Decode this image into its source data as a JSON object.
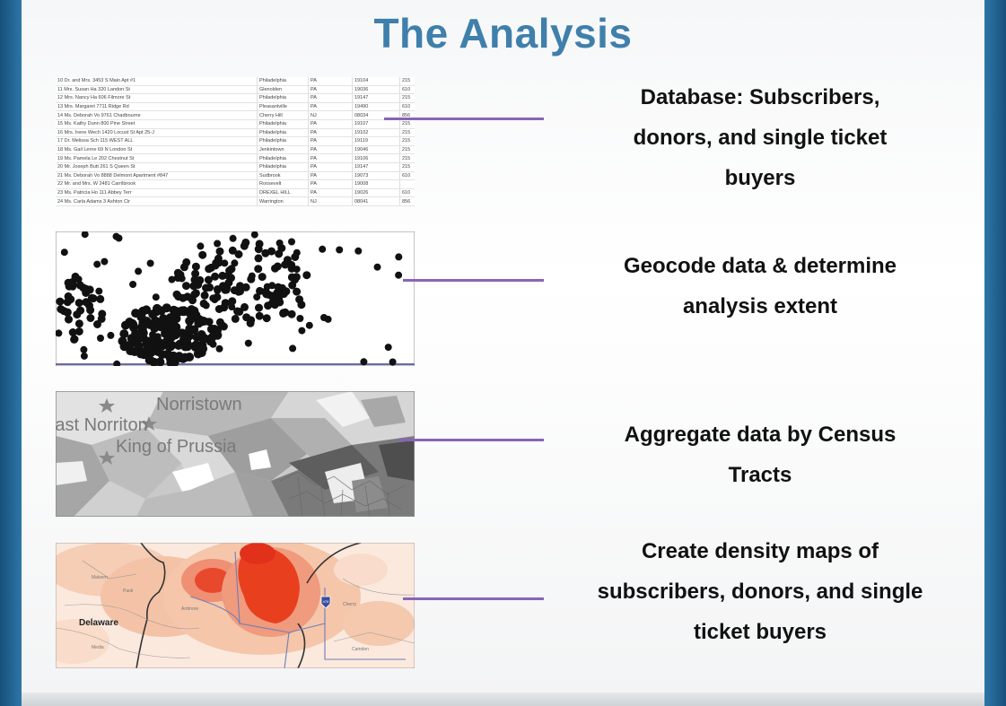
{
  "title": "The Analysis",
  "colors": {
    "title": "#3f7fab",
    "connector": "#8a63b8",
    "frame": "#1f5f8f"
  },
  "steps": [
    {
      "label_lines": [
        "Database: Subscribers,",
        "donors, and single ticket",
        "buyers"
      ],
      "thumbnail": "spreadsheet-image"
    },
    {
      "label_lines": [
        "Geocode data & determine",
        "analysis extent"
      ],
      "thumbnail": "point-map-image"
    },
    {
      "label_lines": [
        "Aggregate data by Census",
        "Tracts"
      ],
      "thumbnail": "census-tract-map-image"
    },
    {
      "label_lines": [
        "Create density maps of",
        "subscribers, donors, and single",
        "ticket buyers"
      ],
      "thumbnail": "density-map-image"
    }
  ],
  "spreadsheet_rows": [
    [
      "10 Dr. and Mrs. 3453 S Main Apt #1",
      "Philadelphia",
      "PA",
      "19104",
      "215"
    ],
    [
      "11 Mrs. Susan Ha 320 Landon St",
      "Glenolden",
      "PA",
      "19036",
      "610"
    ],
    [
      "12 Mrs. Nancy Ha 606 Filmore St",
      "Philadelphia",
      "PA",
      "19147",
      "215"
    ],
    [
      "13 Mrs. Margaret 7711 Ridge Rd",
      "Pleasantville",
      "PA",
      "19490",
      "610"
    ],
    [
      "14 Ms. Deborah Vo 9761 Chadbourne",
      "Cherry Hill",
      "NJ",
      "08034",
      "856"
    ],
    [
      "15 Ms. Kathy Dunn 800 Pine Street",
      "Philadelphia",
      "PA",
      "19107",
      "215"
    ],
    [
      "16 Mrs. Irene Wech 1420 Locust St Apt 25-J",
      "Philadelphia",
      "PA",
      "19102",
      "215"
    ],
    [
      "17 Dr. Melissa Sch 115 WEST ALL",
      "Philadelphia",
      "PA",
      "19119",
      "215"
    ],
    [
      "18 Ms. Gail Lerne 69 N London St",
      "Jenkintown",
      "PA",
      "19046",
      "215"
    ],
    [
      "19 Ms. Pamela Le 202 Chestnut St",
      "Philadelphia",
      "PA",
      "19106",
      "215"
    ],
    [
      "20 Mr. Joseph Butt 261 S Queen St",
      "Philadelphia",
      "PA",
      "19147",
      "215"
    ],
    [
      "21 Ms. Deborah Vo 8888 Delmont  Apartment #847",
      "Sudbrook",
      "PA",
      "19073",
      "610"
    ],
    [
      "22 Mr. and Mrs. W 2481 Carrilbrook",
      "Roosevelt",
      "PA",
      "19008",
      ""
    ],
    [
      "23 Ms. Patricia Ho 111 Abbey Terr",
      "DREXEL HILL",
      "PA",
      "19026",
      "610"
    ],
    [
      "24 Ms. Carla Adams 3 Ashton Cir",
      "Warrington",
      "NJ",
      "08041",
      "856"
    ]
  ],
  "map_labels": {
    "norristown": "Norristown",
    "east_norriton": "East Norriton",
    "king_of_prussia": "King of Prussia",
    "delaware": "Delaware",
    "highway_shield": "476"
  }
}
